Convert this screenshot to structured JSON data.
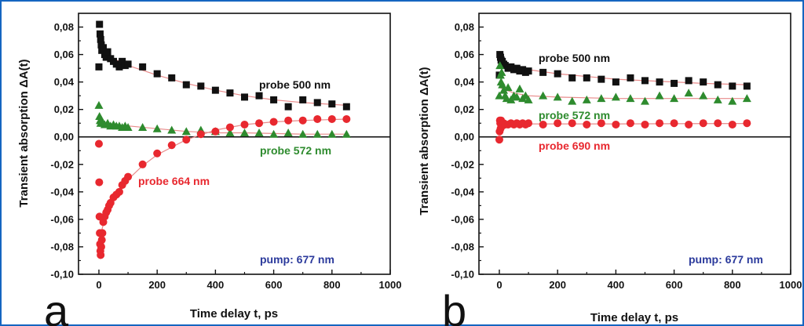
{
  "chart_data": [
    {
      "type": "scatter",
      "panel": "a",
      "xlabel": "Time delay t, ps",
      "ylabel": "Transient absorption ΔA(t)",
      "xlim": [
        -70,
        1000
      ],
      "ylim": [
        -0.1,
        0.09
      ],
      "xticks": [
        "0",
        "200",
        "400",
        "600",
        "800",
        "1000"
      ],
      "xtick_values": [
        0,
        200,
        400,
        600,
        800,
        1000
      ],
      "yticks": [
        "-0,10",
        "-0,08",
        "-0,06",
        "-0,04",
        "-0,02",
        "0,00",
        "0,02",
        "0,04",
        "0,06",
        "0,08"
      ],
      "ytick_values": [
        -0.1,
        -0.08,
        -0.06,
        -0.04,
        -0.02,
        0.0,
        0.02,
        0.04,
        0.06,
        0.08
      ],
      "zero_line": true,
      "annotations": {
        "pump": "pump: 677 nm",
        "s500": "probe 500 nm",
        "s572": "probe 572 nm",
        "s664": "probe 664 nm"
      },
      "series": [
        {
          "key": "s500",
          "marker": "square",
          "color": "#111111",
          "x": [
            0,
            2,
            4,
            6,
            8,
            10,
            15,
            20,
            25,
            30,
            40,
            50,
            60,
            70,
            80,
            90,
            100,
            150,
            200,
            250,
            300,
            350,
            400,
            450,
            500,
            550,
            600,
            650,
            700,
            750,
            800,
            850
          ],
          "y": [
            0.051,
            0.082,
            0.075,
            0.071,
            0.067,
            0.063,
            0.065,
            0.06,
            0.058,
            0.062,
            0.057,
            0.055,
            0.053,
            0.051,
            0.055,
            0.052,
            0.053,
            0.051,
            0.046,
            0.043,
            0.038,
            0.037,
            0.034,
            0.032,
            0.029,
            0.03,
            0.027,
            0.022,
            0.027,
            0.025,
            0.024,
            0.022
          ],
          "fit": [
            [
              0,
              0.064
            ],
            [
              50,
              0.057
            ],
            [
              100,
              0.052
            ],
            [
              200,
              0.045
            ],
            [
              300,
              0.039
            ],
            [
              400,
              0.034
            ],
            [
              500,
              0.03
            ],
            [
              600,
              0.027
            ],
            [
              700,
              0.025
            ],
            [
              850,
              0.023
            ]
          ]
        },
        {
          "key": "s572",
          "marker": "triangle",
          "color": "#2e8b2e",
          "x": [
            0,
            2,
            4,
            6,
            8,
            10,
            15,
            20,
            30,
            40,
            50,
            60,
            70,
            80,
            90,
            100,
            150,
            200,
            250,
            300,
            350,
            400,
            450,
            500,
            550,
            600,
            650,
            700,
            750,
            800,
            850
          ],
          "y": [
            0.023,
            0.015,
            0.012,
            0.01,
            0.012,
            0.011,
            0.01,
            0.009,
            0.01,
            0.008,
            0.009,
            0.008,
            0.008,
            0.007,
            0.008,
            0.007,
            0.007,
            0.006,
            0.005,
            0.004,
            0.005,
            0.004,
            0.003,
            0.003,
            0.003,
            0.002,
            0.003,
            0.002,
            0.002,
            0.002,
            0.002
          ],
          "fit": [
            [
              0,
              0.011
            ],
            [
              50,
              0.009
            ],
            [
              100,
              0.008
            ],
            [
              200,
              0.006
            ],
            [
              300,
              0.004
            ],
            [
              400,
              0.003
            ],
            [
              500,
              0.003
            ],
            [
              700,
              0.002
            ],
            [
              850,
              0.002
            ]
          ]
        },
        {
          "key": "s664",
          "marker": "circle",
          "color": "#e8282f",
          "x": [
            0,
            1,
            2,
            3,
            4,
            5,
            6,
            8,
            10,
            12,
            15,
            20,
            25,
            30,
            35,
            40,
            50,
            60,
            70,
            80,
            90,
            100,
            150,
            200,
            250,
            300,
            350,
            400,
            450,
            500,
            550,
            600,
            650,
            700,
            750,
            800,
            850
          ],
          "y": [
            -0.005,
            -0.033,
            -0.058,
            -0.07,
            -0.078,
            -0.083,
            -0.086,
            -0.08,
            -0.075,
            -0.07,
            -0.062,
            -0.058,
            -0.055,
            -0.053,
            -0.05,
            -0.048,
            -0.044,
            -0.042,
            -0.04,
            -0.035,
            -0.032,
            -0.029,
            -0.02,
            -0.012,
            -0.006,
            -0.002,
            0.002,
            0.004,
            0.007,
            0.009,
            0.01,
            0.011,
            0.012,
            0.012,
            0.013,
            0.013,
            0.013
          ],
          "fit": [
            [
              0,
              -0.075
            ],
            [
              20,
              -0.06
            ],
            [
              50,
              -0.046
            ],
            [
              100,
              -0.031
            ],
            [
              150,
              -0.021
            ],
            [
              200,
              -0.013
            ],
            [
              300,
              -0.002
            ],
            [
              400,
              0.005
            ],
            [
              500,
              0.009
            ],
            [
              600,
              0.011
            ],
            [
              700,
              0.012
            ],
            [
              850,
              0.013
            ]
          ]
        }
      ]
    },
    {
      "type": "scatter",
      "panel": "b",
      "xlabel": "Time delay t, ps",
      "ylabel": "Transient absorption ΔA(t)",
      "xlim": [
        -70,
        1000
      ],
      "ylim": [
        -0.1,
        0.09
      ],
      "xticks": [
        "0",
        "200",
        "400",
        "600",
        "800",
        "1000"
      ],
      "xtick_values": [
        0,
        200,
        400,
        600,
        800,
        1000
      ],
      "yticks": [
        "-0,10",
        "-0,08",
        "-0,06",
        "-0,04",
        "-0,02",
        "0,00",
        "0,02",
        "0,04",
        "0,06",
        "0,08"
      ],
      "ytick_values": [
        -0.1,
        -0.08,
        -0.06,
        -0.04,
        -0.02,
        0.0,
        0.02,
        0.04,
        0.06,
        0.08
      ],
      "zero_line": true,
      "annotations": {
        "pump": "pump: 677  nm",
        "s500": "probe 500 nm",
        "s572": "probe 572 nm",
        "s690": "probe 690 nm"
      },
      "series": [
        {
          "key": "s500",
          "marker": "square",
          "color": "#111111",
          "x": [
            0,
            2,
            4,
            6,
            8,
            10,
            15,
            20,
            30,
            40,
            50,
            60,
            70,
            80,
            90,
            100,
            150,
            200,
            250,
            300,
            350,
            400,
            450,
            500,
            550,
            600,
            650,
            700,
            750,
            800,
            850
          ],
          "y": [
            0.045,
            0.06,
            0.058,
            0.056,
            0.054,
            0.055,
            0.053,
            0.052,
            0.05,
            0.051,
            0.049,
            0.05,
            0.048,
            0.049,
            0.047,
            0.048,
            0.047,
            0.046,
            0.043,
            0.043,
            0.042,
            0.04,
            0.043,
            0.041,
            0.04,
            0.039,
            0.041,
            0.04,
            0.038,
            0.037,
            0.037
          ],
          "fit": [
            [
              0,
              0.052
            ],
            [
              100,
              0.049
            ],
            [
              200,
              0.046
            ],
            [
              300,
              0.044
            ],
            [
              400,
              0.042
            ],
            [
              500,
              0.041
            ],
            [
              600,
              0.04
            ],
            [
              700,
              0.039
            ],
            [
              850,
              0.038
            ]
          ]
        },
        {
          "key": "s572",
          "marker": "triangle",
          "color": "#2e8b2e",
          "x": [
            0,
            2,
            4,
            6,
            8,
            10,
            15,
            20,
            25,
            30,
            40,
            50,
            60,
            70,
            80,
            90,
            100,
            150,
            200,
            250,
            300,
            350,
            400,
            450,
            500,
            550,
            600,
            650,
            700,
            750,
            800,
            850
          ],
          "y": [
            0.03,
            0.052,
            0.045,
            0.04,
            0.047,
            0.038,
            0.034,
            0.03,
            0.028,
            0.036,
            0.027,
            0.03,
            0.029,
            0.035,
            0.028,
            0.03,
            0.027,
            0.03,
            0.029,
            0.026,
            0.027,
            0.028,
            0.029,
            0.028,
            0.026,
            0.03,
            0.028,
            0.032,
            0.03,
            0.027,
            0.026,
            0.028
          ],
          "fit": [
            [
              0,
              0.036
            ],
            [
              50,
              0.032
            ],
            [
              100,
              0.03
            ],
            [
              200,
              0.029
            ],
            [
              400,
              0.028
            ],
            [
              600,
              0.028
            ],
            [
              850,
              0.028
            ]
          ]
        },
        {
          "key": "s690",
          "marker": "circle",
          "color": "#e8282f",
          "x": [
            0,
            1,
            2,
            3,
            4,
            6,
            8,
            10,
            15,
            20,
            30,
            40,
            50,
            60,
            70,
            80,
            90,
            100,
            150,
            200,
            250,
            300,
            350,
            400,
            450,
            500,
            550,
            600,
            650,
            700,
            750,
            800,
            850
          ],
          "y": [
            -0.002,
            0.004,
            0.012,
            0.01,
            0.006,
            0.012,
            0.009,
            0.008,
            0.01,
            0.009,
            0.009,
            0.01,
            0.009,
            0.01,
            0.009,
            0.01,
            0.009,
            0.01,
            0.009,
            0.01,
            0.01,
            0.009,
            0.01,
            0.009,
            0.01,
            0.009,
            0.01,
            0.01,
            0.009,
            0.01,
            0.01,
            0.009,
            0.01
          ],
          "fit": [
            [
              0,
              0.006
            ],
            [
              20,
              0.009
            ],
            [
              100,
              0.0095
            ],
            [
              400,
              0.0095
            ],
            [
              850,
              0.0098
            ]
          ]
        }
      ]
    }
  ],
  "panel_letters": [
    "a",
    "b"
  ]
}
